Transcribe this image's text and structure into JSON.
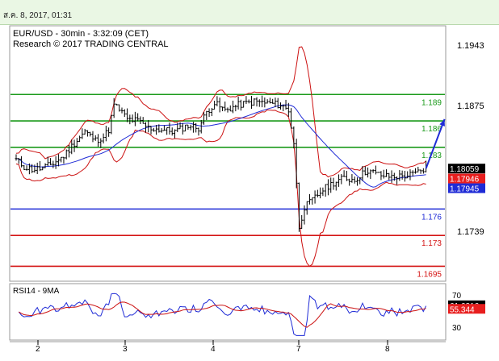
{
  "header": {
    "datetime": "ส.ค. 8, 2017, 01:31"
  },
  "chart_data": {
    "type": "candlestick",
    "title": "EUR/USD - 30min - 3:32:09 (CET)",
    "subtitle": "Research © 2017 TRADING CENTRAL",
    "price_axis": {
      "ticks": [
        "1.1943",
        "1.1875",
        "1.1739"
      ],
      "ylim": [
        1.1678,
        1.1968
      ]
    },
    "x_ticks": [
      "2",
      "3",
      "4",
      "7",
      "8"
    ],
    "levels": [
      {
        "label": "1.189",
        "value": 1.189,
        "color": "#1a9a1a"
      },
      {
        "label": "1.186",
        "value": 1.186,
        "color": "#1a9a1a"
      },
      {
        "label": "1.183",
        "value": 1.183,
        "color": "#1a9a1a"
      },
      {
        "label": "1.176",
        "value": 1.176,
        "color": "#1f2bd6"
      },
      {
        "label": "1.173",
        "value": 1.173,
        "color": "#d41414"
      },
      {
        "label": "1.1695",
        "value": 1.1695,
        "color": "#d41414"
      }
    ],
    "price_tags": [
      {
        "label": "1.18059",
        "value": 1.18059,
        "bg": "#000000",
        "fg": "#ffffff"
      },
      {
        "label": "1.17946",
        "value": 1.17946,
        "bg": "#e81e1e",
        "fg": "#ffffff"
      },
      {
        "label": "1.17945",
        "value": 1.17945,
        "bg": "#1f2bd6",
        "fg": "#ffffff"
      }
    ],
    "close_series": [
      [
        0,
        1.1816
      ],
      [
        3,
        1.1808
      ],
      [
        6,
        1.1805
      ],
      [
        10,
        1.1806
      ],
      [
        14,
        1.1812
      ],
      [
        18,
        1.182
      ],
      [
        22,
        1.1835
      ],
      [
        26,
        1.1848
      ],
      [
        30,
        1.1838
      ],
      [
        33,
        1.1842
      ],
      [
        35,
        1.185
      ],
      [
        37,
        1.1878
      ],
      [
        39,
        1.1873
      ],
      [
        42,
        1.1862
      ],
      [
        46,
        1.186
      ],
      [
        50,
        1.1852
      ],
      [
        55,
        1.185
      ],
      [
        60,
        1.1848
      ],
      [
        65,
        1.1855
      ],
      [
        69,
        1.1852
      ],
      [
        72,
        1.187
      ],
      [
        75,
        1.188
      ],
      [
        79,
        1.1872
      ],
      [
        84,
        1.1878
      ],
      [
        90,
        1.1882
      ],
      [
        96,
        1.188
      ],
      [
        100,
        1.1878
      ],
      [
        103,
        1.1872
      ],
      [
        105,
        1.1835
      ],
      [
        107,
        1.174
      ],
      [
        109,
        1.1762
      ],
      [
        112,
        1.177
      ],
      [
        116,
        1.1782
      ],
      [
        120,
        1.179
      ],
      [
        124,
        1.1795
      ],
      [
        128,
        1.1793
      ],
      [
        130,
        1.1798
      ],
      [
        133,
        1.1804
      ],
      [
        136,
        1.18
      ],
      [
        140,
        1.1797
      ],
      [
        145,
        1.1797
      ],
      [
        150,
        1.1799
      ],
      [
        155,
        1.1806
      ]
    ],
    "projection": {
      "from": [
        155,
        1.1806
      ],
      "to": [
        162,
        1.1862
      ]
    },
    "rsi": {
      "label": "RSI14 - 9MA",
      "ticks": [
        "70",
        "30"
      ],
      "tags": [
        {
          "label": "61.6216",
          "value": 61.6216,
          "bg": "#000000",
          "fg": "#ffffff"
        },
        {
          "label": "55.344",
          "value": 55.344,
          "bg": "#e81e1e",
          "fg": "#ffffff"
        }
      ]
    },
    "legend": "none",
    "grid": false
  }
}
